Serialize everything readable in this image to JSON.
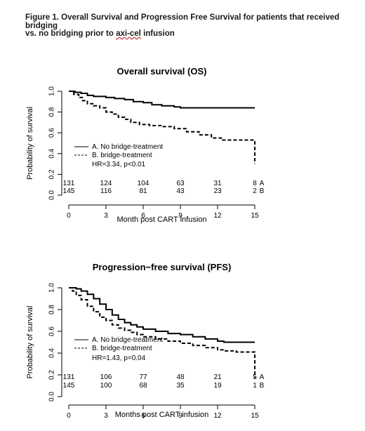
{
  "caption": {
    "line1": "Figure 1.  Overall Survival and Progression Free Survival for patients that received bridging",
    "line2_prefix": "vs. no bridging prior to ",
    "line2_underlined": "axi-cel",
    "line2_suffix": " infusion"
  },
  "chart_data": [
    {
      "type": "line",
      "title": "Overall survival (OS)",
      "xlabel": "Month post CART infusion",
      "ylabel": "Probability of survival",
      "xlim": [
        0,
        15
      ],
      "ylim": [
        0,
        1
      ],
      "x_ticks": [
        0,
        3,
        6,
        9,
        12,
        15
      ],
      "y_ticks": [
        "0.0",
        "0.2",
        "0.4",
        "0.6",
        "0.8",
        "1.0"
      ],
      "series": [
        {
          "name": "A. No bridge-treatment",
          "style": "solid",
          "points": [
            [
              0,
              1.0
            ],
            [
              0.5,
              0.99
            ],
            [
              1.0,
              0.98
            ],
            [
              1.5,
              0.96
            ],
            [
              2.0,
              0.95
            ],
            [
              3.0,
              0.94
            ],
            [
              3.7,
              0.93
            ],
            [
              4.5,
              0.92
            ],
            [
              5.2,
              0.9
            ],
            [
              6.0,
              0.89
            ],
            [
              6.7,
              0.87
            ],
            [
              7.5,
              0.86
            ],
            [
              8.5,
              0.85
            ],
            [
              9.0,
              0.84
            ],
            [
              15.0,
              0.84
            ]
          ]
        },
        {
          "name": "B. bridge-treatment",
          "style": "dashed",
          "points": [
            [
              0,
              1.0
            ],
            [
              0.4,
              0.97
            ],
            [
              0.8,
              0.94
            ],
            [
              1.1,
              0.91
            ],
            [
              1.5,
              0.88
            ],
            [
              2.0,
              0.86
            ],
            [
              2.5,
              0.84
            ],
            [
              3.0,
              0.8
            ],
            [
              3.5,
              0.78
            ],
            [
              4.0,
              0.75
            ],
            [
              4.5,
              0.73
            ],
            [
              5.0,
              0.7
            ],
            [
              5.7,
              0.68
            ],
            [
              6.5,
              0.67
            ],
            [
              7.5,
              0.66
            ],
            [
              8.5,
              0.64
            ],
            [
              9.5,
              0.61
            ],
            [
              10.5,
              0.58
            ],
            [
              11.5,
              0.55
            ],
            [
              12.3,
              0.53
            ],
            [
              15.0,
              0.53
            ],
            [
              15.0,
              0.3
            ]
          ]
        }
      ],
      "annotation": "HR=3.34, p<0.01",
      "risk_table": {
        "times": [
          0,
          3,
          6,
          9,
          12,
          15
        ],
        "rows": [
          {
            "counts": [
              "131",
              "124",
              "104",
              "63",
              "31",
              "8"
            ],
            "label": "A"
          },
          {
            "counts": [
              "145",
              "116",
              "81",
              "43",
              "23",
              "2"
            ],
            "label": "B"
          }
        ]
      },
      "legend_position": "lower-left"
    },
    {
      "type": "line",
      "title": "Progression−free survival (PFS)",
      "xlabel": "Months post CART infusion",
      "ylabel": "Probability of survival",
      "xlim": [
        0,
        15
      ],
      "ylim": [
        0,
        1
      ],
      "x_ticks": [
        0,
        3,
        6,
        9,
        12,
        15
      ],
      "y_ticks": [
        "0.0",
        "0.2",
        "0.4",
        "0.6",
        "0.8",
        "1.0"
      ],
      "series": [
        {
          "name": "A. No bridge-treatment",
          "style": "solid",
          "points": [
            [
              0,
              1.0
            ],
            [
              0.6,
              0.99
            ],
            [
              1.0,
              0.97
            ],
            [
              1.5,
              0.94
            ],
            [
              2.0,
              0.9
            ],
            [
              2.5,
              0.85
            ],
            [
              3.0,
              0.8
            ],
            [
              3.5,
              0.75
            ],
            [
              4.0,
              0.71
            ],
            [
              4.5,
              0.68
            ],
            [
              5.0,
              0.66
            ],
            [
              5.5,
              0.64
            ],
            [
              6.0,
              0.62
            ],
            [
              7.0,
              0.6
            ],
            [
              8.0,
              0.58
            ],
            [
              9.0,
              0.57
            ],
            [
              10.0,
              0.55
            ],
            [
              11.0,
              0.53
            ],
            [
              12.0,
              0.51
            ],
            [
              12.5,
              0.5
            ],
            [
              15.0,
              0.5
            ]
          ]
        },
        {
          "name": "B. bridge-treatment",
          "style": "dashed",
          "points": [
            [
              0,
              1.0
            ],
            [
              0.3,
              0.97
            ],
            [
              0.6,
              0.93
            ],
            [
              1.0,
              0.89
            ],
            [
              1.5,
              0.83
            ],
            [
              2.0,
              0.78
            ],
            [
              2.5,
              0.73
            ],
            [
              3.0,
              0.7
            ],
            [
              3.5,
              0.66
            ],
            [
              4.0,
              0.63
            ],
            [
              4.5,
              0.61
            ],
            [
              5.0,
              0.59
            ],
            [
              5.5,
              0.57
            ],
            [
              6.0,
              0.55
            ],
            [
              7.0,
              0.53
            ],
            [
              8.0,
              0.51
            ],
            [
              9.0,
              0.49
            ],
            [
              10.0,
              0.47
            ],
            [
              11.0,
              0.45
            ],
            [
              12.0,
              0.43
            ],
            [
              12.5,
              0.42
            ],
            [
              13.5,
              0.41
            ],
            [
              15.0,
              0.41
            ],
            [
              15.0,
              0.17
            ]
          ]
        }
      ],
      "annotation": "HR=1.43, p=0.04",
      "risk_table": {
        "times": [
          0,
          3,
          6,
          9,
          12,
          15
        ],
        "rows": [
          {
            "counts": [
              "131",
              "106",
              "77",
              "48",
              "21",
              "5"
            ],
            "label": "A"
          },
          {
            "counts": [
              "145",
              "100",
              "68",
              "35",
              "19",
              "1"
            ],
            "label": "B"
          }
        ]
      },
      "legend_position": "lower-left"
    }
  ]
}
